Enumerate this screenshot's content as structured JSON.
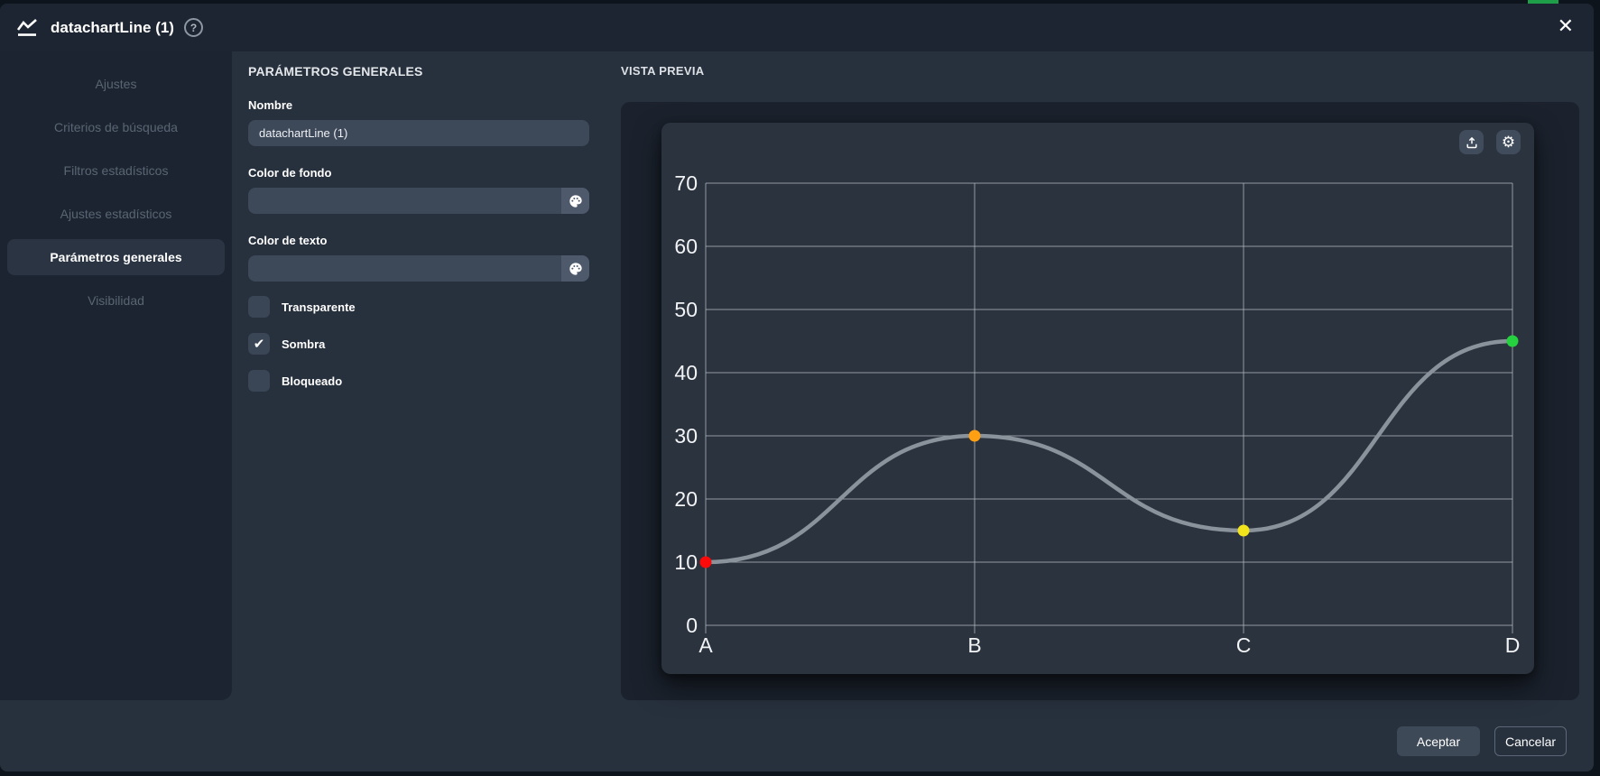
{
  "window": {
    "title": "datachartLine (1)",
    "help_icon": "?",
    "close_icon": "✕"
  },
  "sidebar": {
    "items": [
      {
        "label": "Ajustes",
        "active": false
      },
      {
        "label": "Criterios de búsqueda",
        "active": false
      },
      {
        "label": "Filtros estadísticos",
        "active": false
      },
      {
        "label": "Ajustes estadísticos",
        "active": false
      },
      {
        "label": "Parámetros generales",
        "active": true
      },
      {
        "label": "Visibilidad",
        "active": false
      }
    ]
  },
  "form": {
    "heading": "PARÁMETROS GENERALES",
    "fields": [
      {
        "label": "Nombre",
        "value": "datachartLine (1)",
        "type": "text"
      },
      {
        "label": "Color de fondo",
        "value": "",
        "type": "color"
      },
      {
        "label": "Color de texto",
        "value": "",
        "type": "color"
      }
    ],
    "checkboxes": [
      {
        "label": "Transparente",
        "checked": false
      },
      {
        "label": "Sombra",
        "checked": true
      },
      {
        "label": "Bloqueado",
        "checked": false
      }
    ],
    "check_glyph": "✔"
  },
  "preview": {
    "heading": "VISTA PREVIA",
    "gear_icon": "⚙"
  },
  "footer": {
    "accept_label": "Aceptar",
    "cancel_label": "Cancelar"
  },
  "chart_data": {
    "type": "line",
    "categories": [
      "A",
      "B",
      "C",
      "D"
    ],
    "values": [
      10,
      30,
      15,
      45
    ],
    "point_colors": [
      "#fb0a0a",
      "#ffa014",
      "#f2e41c",
      "#25d13e"
    ],
    "line_color": "#8a929b",
    "grid_color": "#aeb4ba",
    "label_color": "#f2f3f5",
    "ylim": [
      0,
      70
    ],
    "ytick_step": 10,
    "title": "",
    "xlabel": "",
    "ylabel": "",
    "legend": "off",
    "grid": "on",
    "curve": "smooth"
  }
}
